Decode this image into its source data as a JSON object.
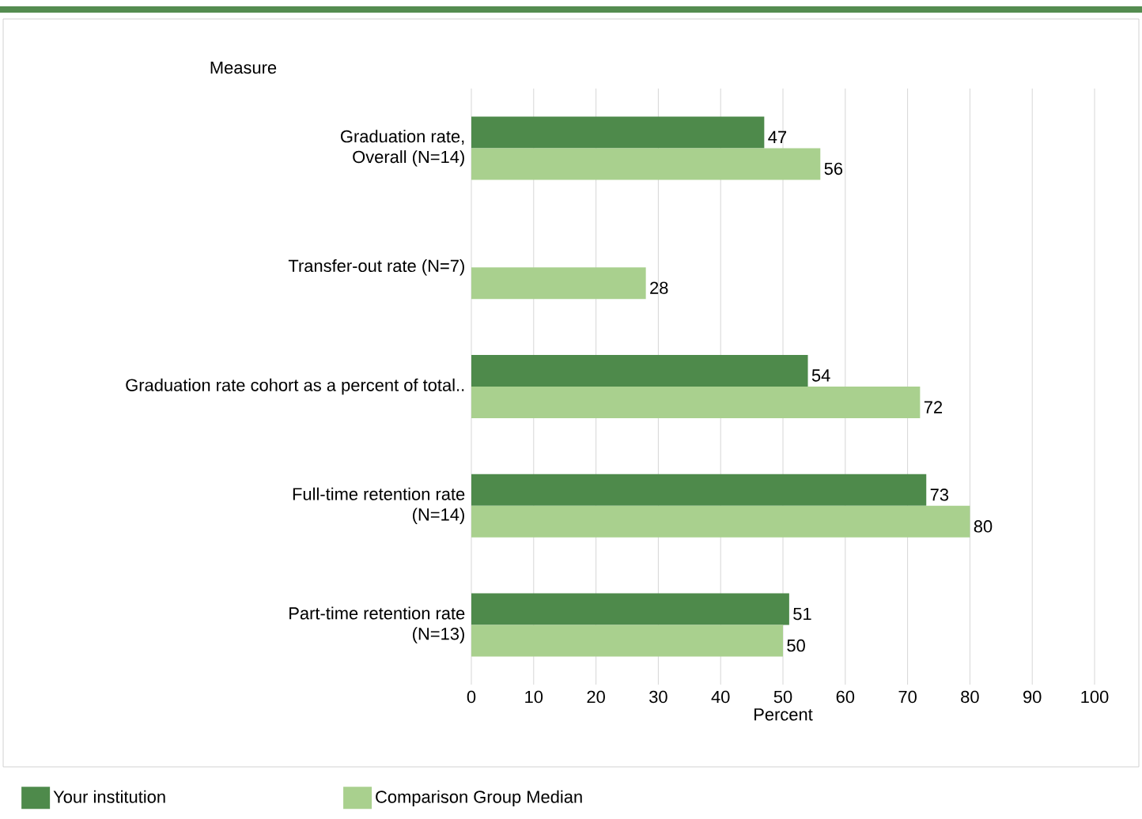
{
  "chart_data": {
    "type": "bar",
    "orientation": "horizontal",
    "xlabel": "Percent",
    "ylabel": "Measure",
    "categories": [
      "Graduation rate, Overall (N=14)",
      "Transfer-out rate (N=7)",
      "Graduation rate cohort as a percent of total..",
      "Full-time retention rate (N=14)",
      "Part-time retention rate (N=13)"
    ],
    "series": [
      {
        "name": "Your institution",
        "color": "#4e8a4b",
        "values": [
          47,
          null,
          54,
          73,
          51
        ]
      },
      {
        "name": "Comparison Group Median",
        "color": "#a9d08e",
        "values": [
          56,
          28,
          72,
          80,
          50
        ]
      }
    ],
    "xlim": [
      0,
      100
    ],
    "xticks": [
      0,
      10,
      20,
      30,
      40,
      50,
      60,
      70,
      80,
      90,
      100
    ],
    "grid": "x",
    "legend": "bottom",
    "data_labels": true
  }
}
